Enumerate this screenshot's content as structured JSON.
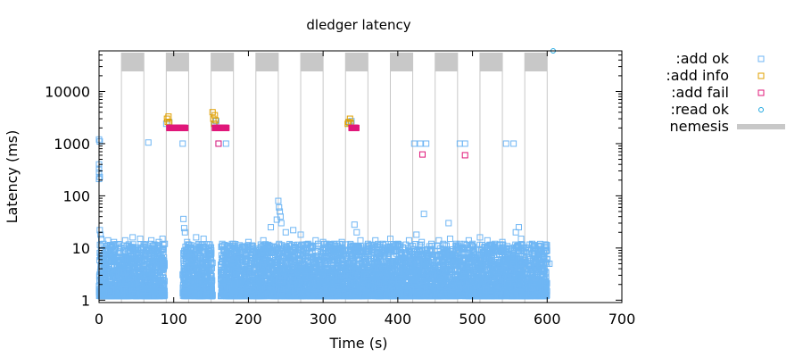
{
  "chart_data": {
    "type": "scatter",
    "title": "dledger latency",
    "xlabel": "Time (s)",
    "ylabel": "Latency (ms)",
    "xlim": [
      0,
      700
    ],
    "ylim": [
      0.9,
      60000
    ],
    "yscale": "log",
    "grid": false,
    "legend_position": "top-right outside",
    "xticks": [
      0,
      100,
      200,
      300,
      400,
      500,
      600,
      700
    ],
    "xtick_labels": [
      "0",
      "100",
      "200",
      "300",
      "400",
      "500",
      "600",
      "700"
    ],
    "yticks": [
      1,
      10,
      100,
      1000,
      10000
    ],
    "ytick_labels": [
      "1",
      "10",
      "100",
      "1000",
      "10000"
    ],
    "nemesis_windows": [
      [
        30,
        60
      ],
      [
        90,
        120
      ],
      [
        150,
        180
      ],
      [
        210,
        240
      ],
      [
        270,
        300
      ],
      [
        330,
        360
      ],
      [
        390,
        420
      ],
      [
        450,
        480
      ],
      [
        510,
        540
      ],
      [
        570,
        600
      ]
    ],
    "series": [
      {
        "name": ":add ok",
        "color": "#6fb6f4",
        "marker": "square",
        "dense_bands": [
          [
            0,
            30
          ],
          [
            30,
            88
          ],
          [
            112,
            152
          ],
          [
            163,
            600
          ]
        ],
        "band_range": [
          1.2,
          12
        ],
        "points": [
          [
            0,
            1200
          ],
          [
            1,
            1100
          ],
          [
            0,
            400
          ],
          [
            0,
            330
          ],
          [
            0,
            280
          ],
          [
            1,
            230
          ],
          [
            0,
            210
          ],
          [
            1,
            22
          ],
          [
            2,
            18
          ],
          [
            3,
            15
          ],
          [
            6,
            12
          ],
          [
            12,
            14
          ],
          [
            20,
            13
          ],
          [
            35,
            14
          ],
          [
            45,
            16
          ],
          [
            55,
            15
          ],
          [
            66,
            1050
          ],
          [
            70,
            14
          ],
          [
            80,
            13
          ],
          [
            85,
            15
          ],
          [
            88,
            12
          ],
          [
            90,
            2400
          ],
          [
            94,
            2600
          ],
          [
            112,
            1000
          ],
          [
            113,
            36
          ],
          [
            114,
            24
          ],
          [
            115,
            20
          ],
          [
            118,
            13
          ],
          [
            130,
            16
          ],
          [
            140,
            15
          ],
          [
            155,
            2400
          ],
          [
            157,
            2700
          ],
          [
            160,
            1000
          ],
          [
            165,
            12
          ],
          [
            170,
            1000
          ],
          [
            175,
            11
          ],
          [
            180,
            12
          ],
          [
            200,
            13
          ],
          [
            220,
            14
          ],
          [
            230,
            25
          ],
          [
            238,
            35
          ],
          [
            240,
            80
          ],
          [
            241,
            60
          ],
          [
            242,
            50
          ],
          [
            243,
            40
          ],
          [
            244,
            30
          ],
          [
            250,
            20
          ],
          [
            260,
            22
          ],
          [
            270,
            18
          ],
          [
            280,
            12
          ],
          [
            290,
            14
          ],
          [
            300,
            13
          ],
          [
            305,
            12
          ],
          [
            315,
            12
          ],
          [
            325,
            13
          ],
          [
            335,
            2500
          ],
          [
            338,
            2700
          ],
          [
            342,
            28
          ],
          [
            345,
            20
          ],
          [
            350,
            14
          ],
          [
            360,
            12
          ],
          [
            370,
            14
          ],
          [
            380,
            12
          ],
          [
            390,
            15
          ],
          [
            400,
            12
          ],
          [
            415,
            14
          ],
          [
            422,
            1000
          ],
          [
            425,
            18
          ],
          [
            430,
            1000
          ],
          [
            432,
            13
          ],
          [
            435,
            45
          ],
          [
            438,
            1000
          ],
          [
            445,
            12
          ],
          [
            455,
            14
          ],
          [
            468,
            30
          ],
          [
            470,
            15
          ],
          [
            478,
            12
          ],
          [
            483,
            1000
          ],
          [
            490,
            1000
          ],
          [
            495,
            14
          ],
          [
            500,
            12
          ],
          [
            510,
            16
          ],
          [
            520,
            14
          ],
          [
            530,
            12
          ],
          [
            540,
            13
          ],
          [
            545,
            1000
          ],
          [
            555,
            1000
          ],
          [
            558,
            20
          ],
          [
            562,
            25
          ],
          [
            565,
            15
          ],
          [
            580,
            12
          ],
          [
            590,
            8
          ],
          [
            600,
            6
          ],
          [
            603,
            5
          ]
        ]
      },
      {
        "name": ":add info",
        "color": "#e0a000",
        "marker": "square",
        "points": [
          [
            91,
            3000
          ],
          [
            92,
            2600
          ],
          [
            93,
            3300
          ],
          [
            94,
            2500
          ],
          [
            152,
            4000
          ],
          [
            153,
            3000
          ],
          [
            154,
            2400
          ],
          [
            155,
            3500
          ],
          [
            156,
            2800
          ],
          [
            333,
            2400
          ],
          [
            334,
            2600
          ],
          [
            336,
            3000
          ],
          [
            337,
            2500
          ]
        ]
      },
      {
        "name": ":add fail",
        "color": "#e0187a",
        "marker": "square",
        "dense_bands": [
          [
            94,
            116
          ],
          [
            155,
            171
          ],
          [
            338,
            345
          ]
        ],
        "band_value": 2000,
        "points": [
          [
            110,
            2000
          ],
          [
            160,
            1000
          ],
          [
            170,
            2000
          ],
          [
            343,
            2000
          ],
          [
            433,
            620
          ],
          [
            490,
            600
          ]
        ]
      },
      {
        "name": ":read ok",
        "color": "#1ea7e0",
        "marker": "circle",
        "points": [
          [
            608,
            60000
          ]
        ]
      },
      {
        "name": "nemesis",
        "color": "#c8c8c8",
        "marker": "band"
      }
    ]
  }
}
